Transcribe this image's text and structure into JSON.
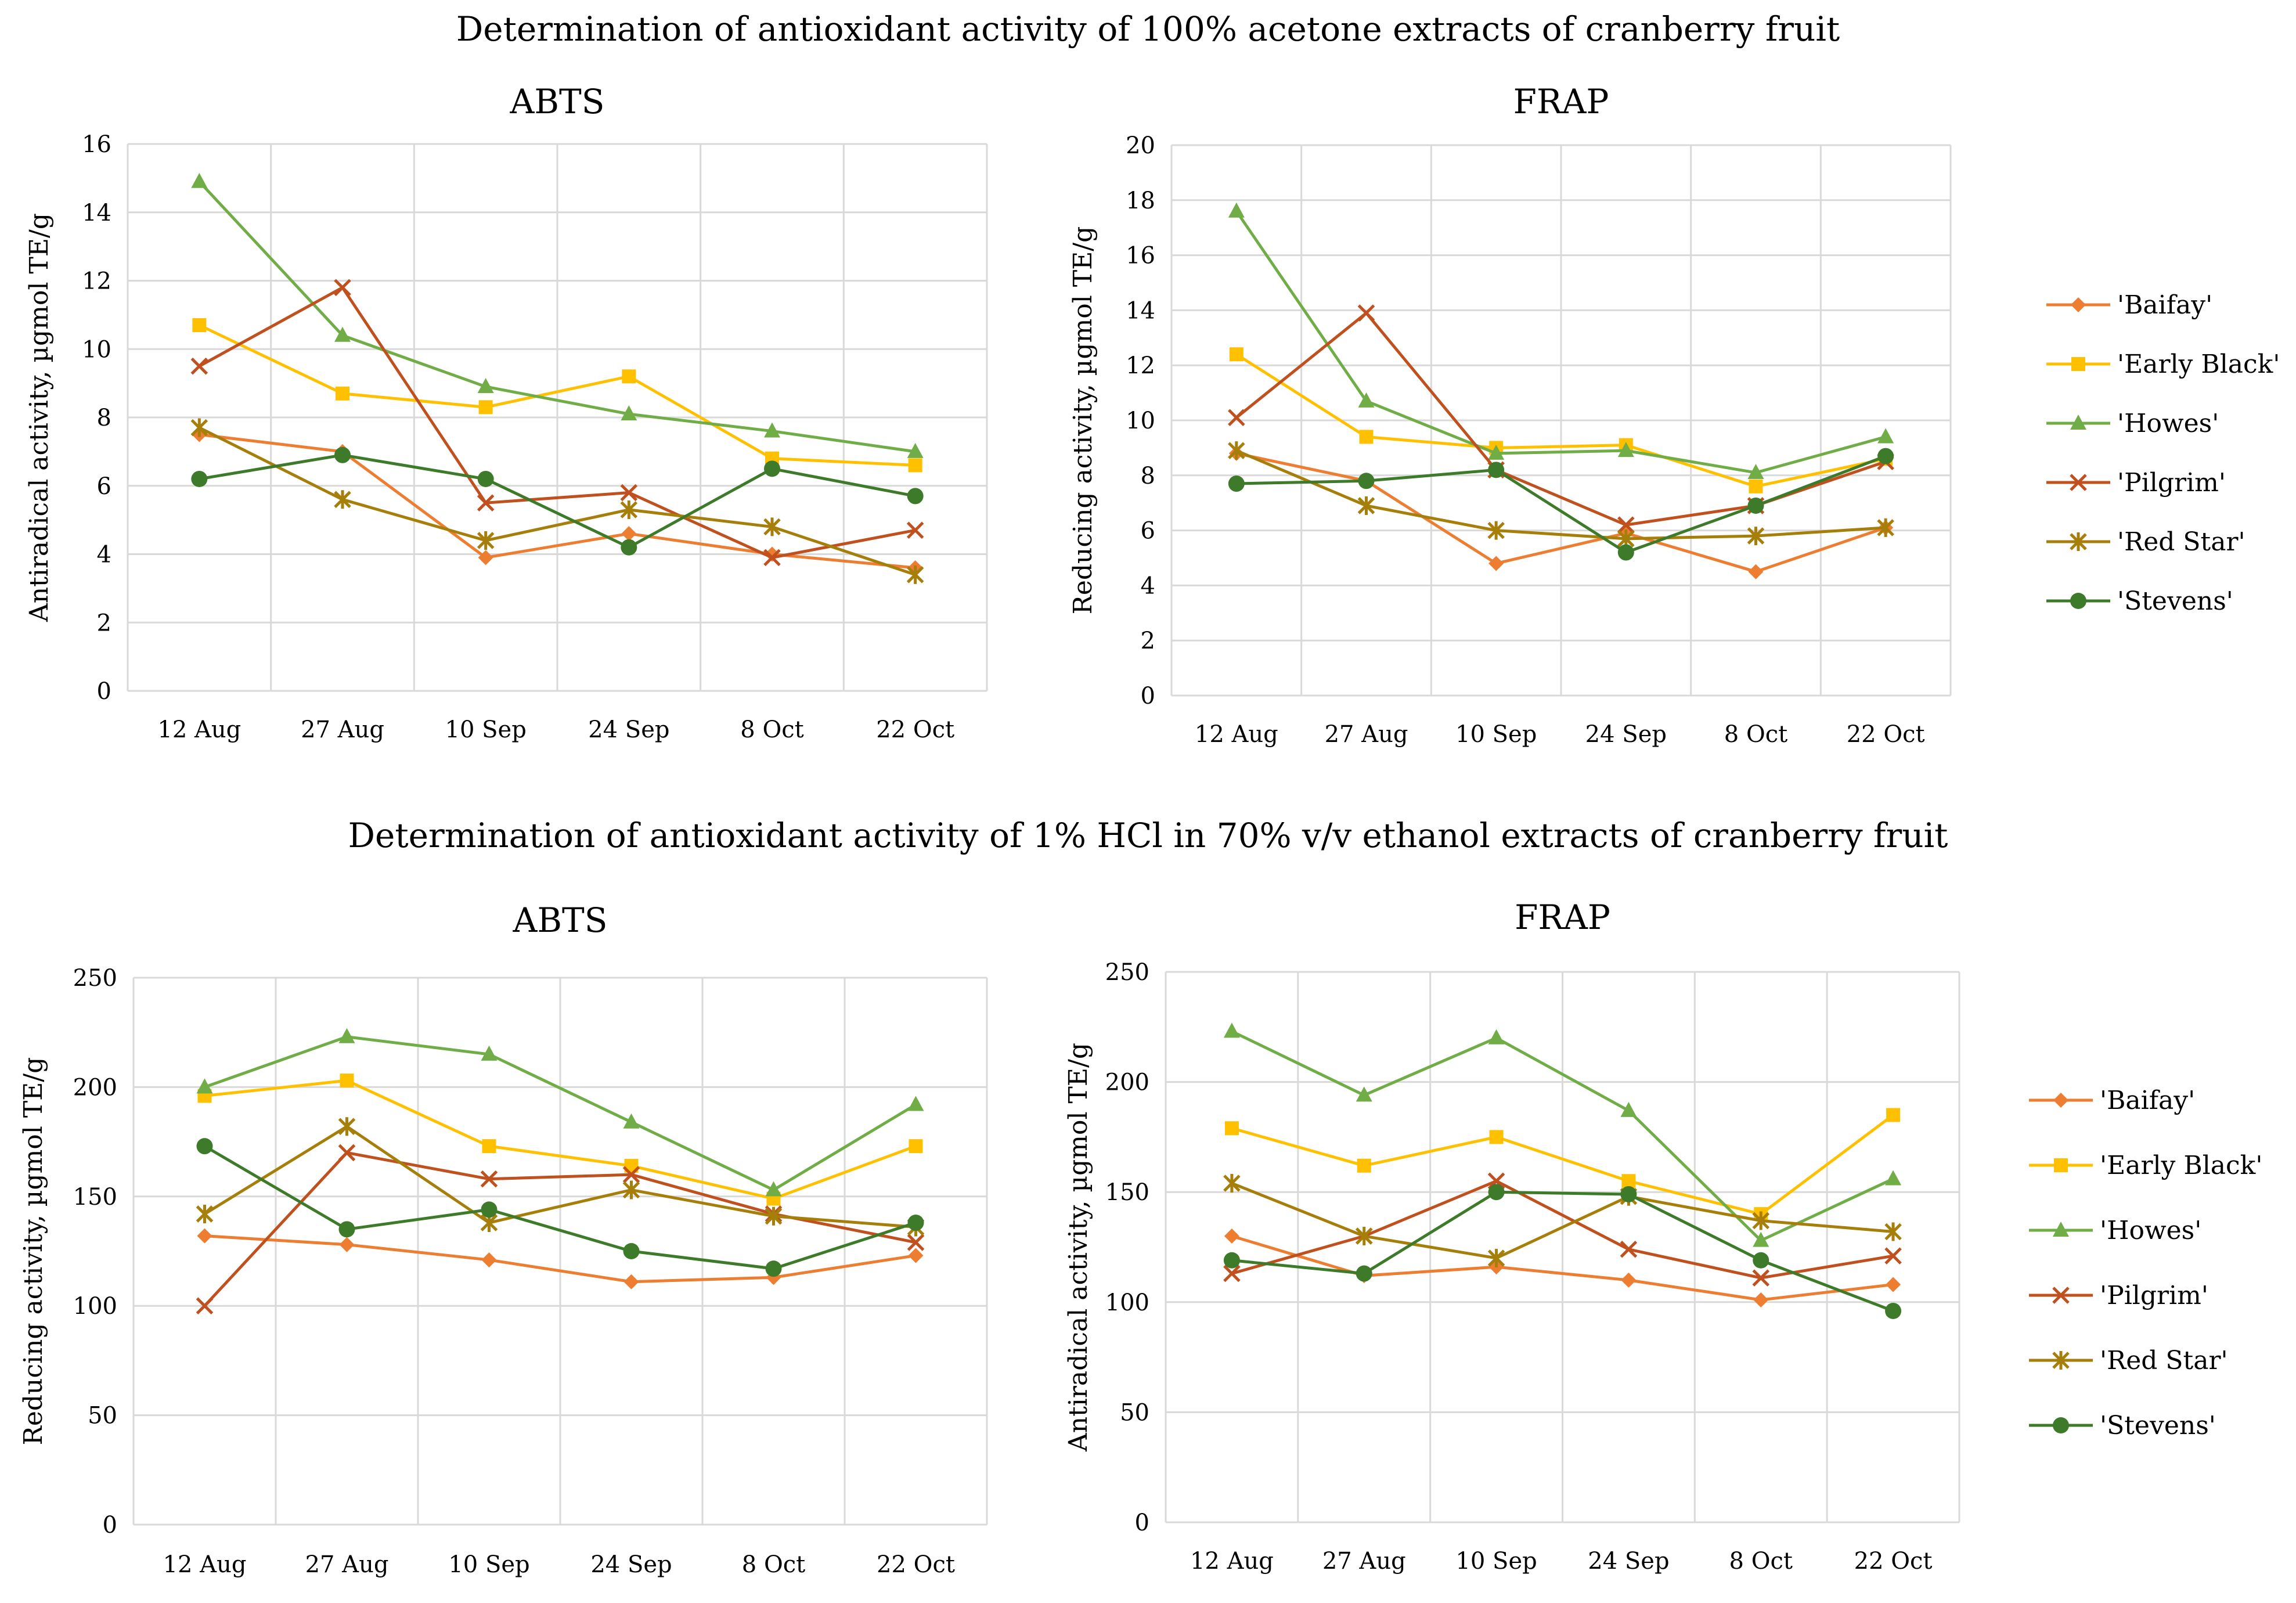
{
  "sections": [
    {
      "title": "Determination of antioxidant activity of 100% acetone extracts of cranberry fruit"
    },
    {
      "title": "Determination of antioxidant activity of 1% HCl in 70% v/v ethanol extracts of cranberry fruit"
    }
  ],
  "colors": {
    "Baifay": "#ED7D31",
    "EarlyBlack": "#FFC000",
    "Howes": "#70AD47",
    "Pilgrim": "#C0501E",
    "RedStar": "#A67E0A",
    "Stevens": "#3D7A29",
    "grid": "#D9D9D9"
  },
  "chart_data": [
    {
      "type": "line",
      "title": "ABTS",
      "xlabel": "",
      "ylabel": "Antiradical activity, µgmol TE/g",
      "ylim": [
        0,
        16
      ],
      "yticks": [
        "0",
        "2",
        "4",
        "6",
        "8",
        "10",
        "12",
        "14",
        "16"
      ],
      "categories": [
        "12 Aug",
        "27 Aug",
        "10 Sep",
        "24 Sep",
        "8 Oct",
        "22 Oct"
      ],
      "series": [
        {
          "name": "'Baifay'",
          "color": "#ED7D31",
          "marker": "diamond",
          "values": [
            7.5,
            7.0,
            3.9,
            4.6,
            4.0,
            3.6
          ]
        },
        {
          "name": "'Early Black'",
          "color": "#FFC000",
          "marker": "square",
          "values": [
            10.7,
            8.7,
            8.3,
            9.2,
            6.8,
            6.6
          ]
        },
        {
          "name": "'Howes'",
          "color": "#70AD47",
          "marker": "triangle",
          "values": [
            14.9,
            10.4,
            8.9,
            8.1,
            7.6,
            7.0
          ]
        },
        {
          "name": "'Pilgrim'",
          "color": "#C0501E",
          "marker": "x",
          "values": [
            9.5,
            11.8,
            5.5,
            5.8,
            3.9,
            4.7
          ]
        },
        {
          "name": "'Red Star'",
          "color": "#A67E0A",
          "marker": "star",
          "values": [
            7.7,
            5.6,
            4.4,
            5.3,
            4.8,
            3.4
          ]
        },
        {
          "name": "'Stevens'",
          "color": "#3D7A29",
          "marker": "circle",
          "values": [
            6.2,
            6.9,
            6.2,
            4.2,
            6.5,
            5.7
          ]
        }
      ]
    },
    {
      "type": "line",
      "title": "FRAP",
      "xlabel": "",
      "ylabel": "Reducing activity, µgmol TE/g",
      "ylim": [
        0,
        20
      ],
      "yticks": [
        "0",
        "2",
        "4",
        "6",
        "8",
        "10",
        "12",
        "14",
        "16",
        "18",
        "20"
      ],
      "categories": [
        "12 Aug",
        "27 Aug",
        "10 Sep",
        "24 Sep",
        "8 Oct",
        "22 Oct"
      ],
      "legend": "right",
      "series": [
        {
          "name": "'Baifay'",
          "color": "#ED7D31",
          "marker": "diamond",
          "values": [
            8.8,
            7.8,
            4.8,
            5.9,
            4.5,
            6.1
          ]
        },
        {
          "name": "'Early Black'",
          "color": "#FFC000",
          "marker": "square",
          "values": [
            12.4,
            9.4,
            9.0,
            9.1,
            7.6,
            8.6
          ]
        },
        {
          "name": "'Howes'",
          "color": "#70AD47",
          "marker": "triangle",
          "values": [
            17.6,
            10.7,
            8.8,
            8.9,
            8.1,
            9.4
          ]
        },
        {
          "name": "'Pilgrim'",
          "color": "#C0501E",
          "marker": "x",
          "values": [
            10.1,
            13.9,
            8.2,
            6.2,
            6.9,
            8.5
          ]
        },
        {
          "name": "'Red Star'",
          "color": "#A67E0A",
          "marker": "star",
          "values": [
            8.9,
            6.9,
            6.0,
            5.7,
            5.8,
            6.1
          ]
        },
        {
          "name": "'Stevens'",
          "color": "#3D7A29",
          "marker": "circle",
          "values": [
            7.7,
            7.8,
            8.2,
            5.2,
            6.9,
            8.7
          ]
        }
      ]
    },
    {
      "type": "line",
      "title": "ABTS",
      "xlabel": "",
      "ylabel": "Reducing activity, µgmol TE/g",
      "ylim": [
        0,
        250
      ],
      "yticks": [
        "0",
        "50",
        "100",
        "150",
        "200",
        "250"
      ],
      "categories": [
        "12 Aug",
        "27 Aug",
        "10 Sep",
        "24 Sep",
        "8 Oct",
        "22 Oct"
      ],
      "series": [
        {
          "name": "'Baifay'",
          "color": "#ED7D31",
          "marker": "diamond",
          "values": [
            132,
            128,
            121,
            111,
            113,
            123
          ]
        },
        {
          "name": "'Early Black'",
          "color": "#FFC000",
          "marker": "square",
          "values": [
            196,
            203,
            173,
            164,
            149,
            173
          ]
        },
        {
          "name": "'Howes'",
          "color": "#70AD47",
          "marker": "triangle",
          "values": [
            200,
            223,
            215,
            184,
            153,
            192
          ]
        },
        {
          "name": "'Pilgrim'",
          "color": "#C0501E",
          "marker": "x",
          "values": [
            100,
            170,
            158,
            160,
            142,
            129
          ]
        },
        {
          "name": "'Red Star'",
          "color": "#A67E0A",
          "marker": "star",
          "values": [
            142,
            182,
            138,
            153,
            141,
            136
          ]
        },
        {
          "name": "'Stevens'",
          "color": "#3D7A29",
          "marker": "circle",
          "values": [
            173,
            135,
            144,
            125,
            117,
            138
          ]
        }
      ]
    },
    {
      "type": "line",
      "title": "FRAP",
      "xlabel": "",
      "ylabel": "Antiradical activity, µgmol TE/g",
      "ylim": [
        0,
        250
      ],
      "yticks": [
        "0",
        "50",
        "100",
        "150",
        "200",
        "250"
      ],
      "categories": [
        "12 Aug",
        "27 Aug",
        "10 Sep",
        "24 Sep",
        "8 Oct",
        "22 Oct"
      ],
      "legend": "right",
      "series": [
        {
          "name": "'Baifay'",
          "color": "#ED7D31",
          "marker": "diamond",
          "values": [
            130,
            112,
            116,
            110,
            101,
            108
          ]
        },
        {
          "name": "'Early Black'",
          "color": "#FFC000",
          "marker": "square",
          "values": [
            179,
            162,
            175,
            155,
            140,
            185
          ]
        },
        {
          "name": "'Howes'",
          "color": "#70AD47",
          "marker": "triangle",
          "values": [
            223,
            194,
            220,
            187,
            128,
            156
          ]
        },
        {
          "name": "'Pilgrim'",
          "color": "#C0501E",
          "marker": "x",
          "values": [
            113,
            130,
            155,
            124,
            111,
            121
          ]
        },
        {
          "name": "'Red Star'",
          "color": "#A67E0A",
          "marker": "star",
          "values": [
            154,
            130,
            120,
            148,
            137,
            132
          ]
        },
        {
          "name": "'Stevens'",
          "color": "#3D7A29",
          "marker": "circle",
          "values": [
            119,
            113,
            150,
            149,
            119,
            96
          ]
        }
      ]
    }
  ]
}
